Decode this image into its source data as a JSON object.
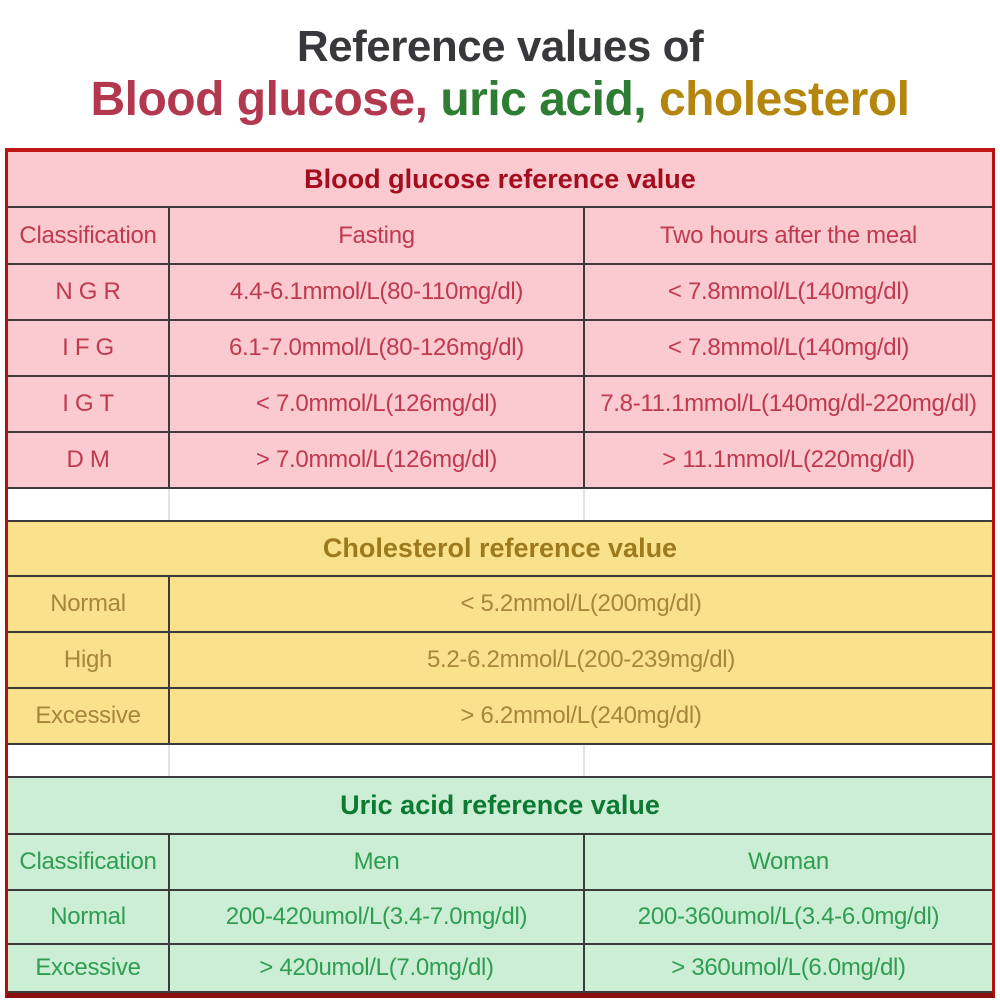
{
  "title": {
    "line1": "Reference values of",
    "line2_segments": [
      {
        "text": "Blood glucose, ",
        "color": "#b23850"
      },
      {
        "text": "uric acid, ",
        "color": "#2e7d32"
      },
      {
        "text": "cholesterol",
        "color": "#b5860e"
      }
    ]
  },
  "chart_data": [
    {
      "type": "table",
      "title": "Blood glucose reference value",
      "columns": [
        "Classification",
        "Fasting",
        "Two hours after the meal"
      ],
      "rows": [
        [
          "N G R",
          "4.4-6.1mmol/L(80-110mg/dl)",
          "< 7.8mmol/L(140mg/dl)"
        ],
        [
          "I F G",
          "6.1-7.0mmol/L(80-126mg/dl)",
          "< 7.8mmol/L(140mg/dl)"
        ],
        [
          "I G T",
          "< 7.0mmol/L(126mg/dl)",
          "7.8-11.1mmol/L(140mg/dl-220mg/dl)"
        ],
        [
          "D M",
          "> 7.0mmol/L(126mg/dl)",
          "> 11.1mmol/L(220mg/dl)"
        ]
      ],
      "theme": {
        "background": "#fbc9d0",
        "title_color": "#a30d1d",
        "text_color": "#bf3a4e"
      }
    },
    {
      "type": "table",
      "title": "Cholesterol reference value",
      "columns": [],
      "rows": [
        [
          "Normal",
          "< 5.2mmol/L(200mg/dl)"
        ],
        [
          "High",
          "5.2-6.2mmol/L(200-239mg/dl)"
        ],
        [
          "Excessive",
          "> 6.2mmol/L(240mg/dl)"
        ]
      ],
      "theme": {
        "background": "#fae28d",
        "title_color": "#9c7a1d",
        "text_color": "#a8863b"
      }
    },
    {
      "type": "table",
      "title": "Uric acid reference value",
      "columns": [
        "Classification",
        "Men",
        "Woman"
      ],
      "rows": [
        [
          "Normal",
          "200-420umol/L(3.4-7.0mg/dl)",
          "200-360umol/L(3.4-6.0mg/dl)"
        ],
        [
          "Excessive",
          "> 420umol/L(7.0mg/dl)",
          "> 360umol/L(6.0mg/dl)"
        ]
      ],
      "theme": {
        "background": "#cbeed4",
        "title_color": "#0c7a33",
        "text_color": "#2f9e53"
      }
    }
  ],
  "colors": {
    "outer_border": "#b31212",
    "inner_grid": "#3b3b3b",
    "title_line1": "#37373c"
  }
}
